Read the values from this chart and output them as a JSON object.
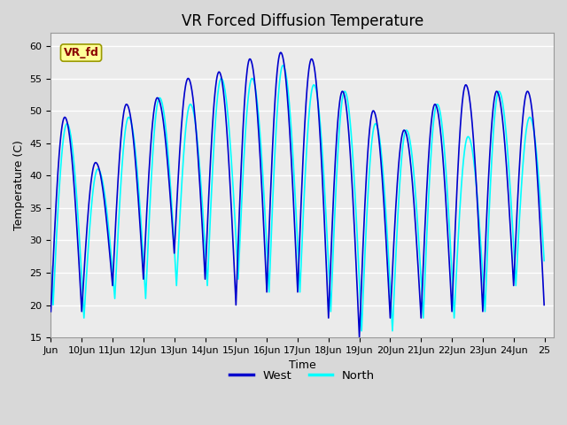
{
  "title": "VR Forced Diffusion Temperature",
  "xlabel": "Time",
  "ylabel": "Temperature (C)",
  "ylim": [
    15,
    62
  ],
  "yticks": [
    15,
    20,
    25,
    30,
    35,
    40,
    45,
    50,
    55,
    60
  ],
  "xlim_start": 9.0,
  "xlim_end": 25.3,
  "xtick_labels": [
    "Jun",
    "10Jun",
    "11Jun",
    "12Jun",
    "13Jun",
    "14Jun",
    "15Jun",
    "16Jun",
    "17Jun",
    "18Jun",
    "19Jun",
    "20Jun",
    "21Jun",
    "22Jun",
    "23Jun",
    "24Jun",
    "25"
  ],
  "xtick_positions": [
    9.0,
    10.0,
    11.0,
    12.0,
    13.0,
    14.0,
    15.0,
    16.0,
    17.0,
    18.0,
    19.0,
    20.0,
    21.0,
    22.0,
    23.0,
    24.0,
    25.0
  ],
  "west_color": "#0000CD",
  "north_color": "#00FFFF",
  "fig_bg_color": "#d8d8d8",
  "plot_bg_color": "#ebebeb",
  "annotation_text": "VR_fd",
  "annotation_bg": "#ffff99",
  "annotation_fg": "#8b0000",
  "legend_west": "West",
  "legend_north": "North",
  "title_fontsize": 12,
  "axis_label_fontsize": 9,
  "tick_fontsize": 8,
  "west_peaks": [
    49,
    42,
    51,
    52,
    55,
    56,
    58,
    59,
    58,
    53,
    50,
    47,
    51,
    54,
    53,
    53
  ],
  "west_troughs": [
    19,
    19,
    23,
    24,
    28,
    24,
    20,
    22,
    22,
    18,
    15,
    18,
    18,
    19,
    19,
    23
  ],
  "north_peaks": [
    48,
    41,
    49,
    52,
    51,
    55,
    55,
    57,
    54,
    53,
    48,
    47,
    51,
    46,
    53,
    49
  ],
  "north_troughs": [
    20,
    18,
    21,
    21,
    23,
    23,
    24,
    22,
    22,
    19,
    16,
    16,
    18,
    18,
    19,
    23
  ]
}
